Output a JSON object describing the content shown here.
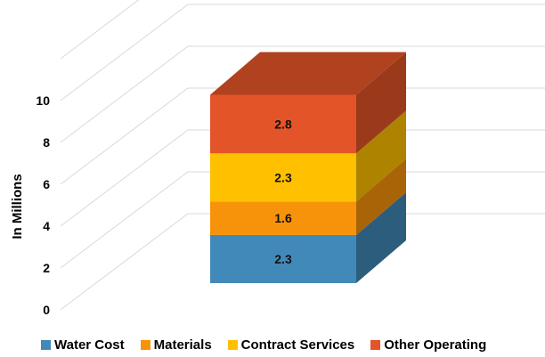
{
  "chart_data": {
    "type": "bar",
    "stacked": true,
    "three_d": true,
    "categories": [
      ""
    ],
    "series": [
      {
        "name": "Water Cost",
        "values": [
          2.3
        ],
        "color": "#4189B8"
      },
      {
        "name": "Materials",
        "values": [
          1.6
        ],
        "color": "#F7930B"
      },
      {
        "name": "Contract Services",
        "values": [
          2.3
        ],
        "color": "#FFC000"
      },
      {
        "name": "Other Operating",
        "values": [
          2.8
        ],
        "color": "#E35528"
      }
    ],
    "data_labels": [
      "2.3",
      "1.6",
      "2.3",
      "2.8"
    ],
    "ylabel": "In Millions",
    "yticks": [
      "0",
      "2",
      "4",
      "6",
      "8",
      "10"
    ],
    "ylim": [
      0,
      12
    ],
    "grid": true,
    "legend": "bottom"
  }
}
